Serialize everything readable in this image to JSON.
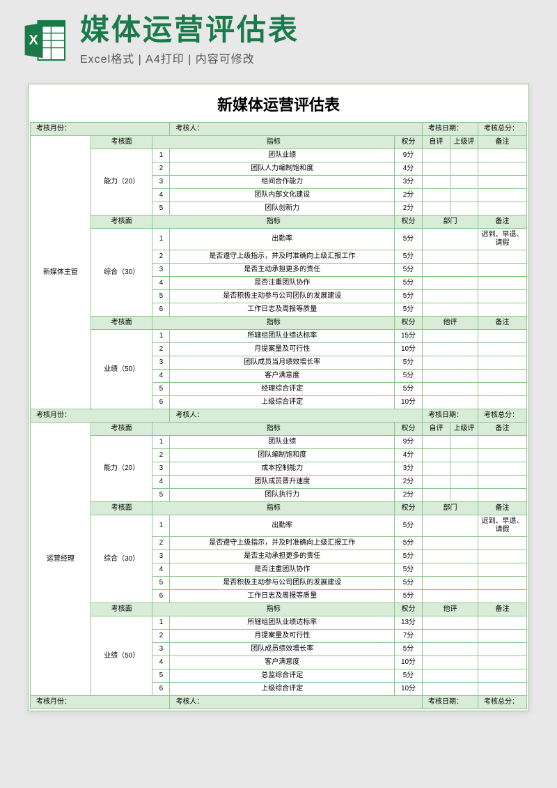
{
  "header": {
    "title": "媒体运营评估表",
    "subtitle": "Excel格式 | A4打印 | 内容可修改",
    "icon_color": "#1a7a4a"
  },
  "form_title": "新媒体运营评估表",
  "info_labels": {
    "month": "考核月份：",
    "person": "考核人：",
    "date": "考核日期：",
    "total": "考核总分："
  },
  "col_headers": {
    "aspect": "考核面",
    "indicator": "指标",
    "weight": "权分",
    "self": "自评",
    "superior": "上级评",
    "dept": "部门",
    "other": "他评",
    "remark": "备注"
  },
  "sections": [
    {
      "role": "新媒体主管",
      "blocks": [
        {
          "category": "能力（20）",
          "eval_type": "self_sup",
          "rows": [
            {
              "n": "1",
              "ind": "团队业绩",
              "w": "9分"
            },
            {
              "n": "2",
              "ind": "团队人力编制饱和度",
              "w": "4分"
            },
            {
              "n": "3",
              "ind": "组间合作能力",
              "w": "3分"
            },
            {
              "n": "4",
              "ind": "团队内部文化建设",
              "w": "2分"
            },
            {
              "n": "5",
              "ind": "团队创新力",
              "w": "2分"
            }
          ]
        },
        {
          "category": "综合（30）",
          "eval_type": "dept",
          "remark_hint": "迟到、早退、请假",
          "rows": [
            {
              "n": "1",
              "ind": "出勤率",
              "w": "5分"
            },
            {
              "n": "2",
              "ind": "是否遵守上级指示，并及时准确向上级汇报工作",
              "w": "5分"
            },
            {
              "n": "3",
              "ind": "是否主动承担更多的责任",
              "w": "5分"
            },
            {
              "n": "4",
              "ind": "是否注重团队协作",
              "w": "5分"
            },
            {
              "n": "5",
              "ind": "是否积极主动参与公司团队的发展建设",
              "w": "5分"
            },
            {
              "n": "6",
              "ind": "工作日志及周报等质量",
              "w": "5分"
            }
          ]
        },
        {
          "category": "业绩（50）",
          "eval_type": "other",
          "rows": [
            {
              "n": "1",
              "ind": "所辖组团队业绩达标率",
              "w": "15分"
            },
            {
              "n": "2",
              "ind": "月提案量及可行性",
              "w": "10分"
            },
            {
              "n": "3",
              "ind": "团队成员当月绩效增长率",
              "w": "5分"
            },
            {
              "n": "4",
              "ind": "客户满意度",
              "w": "5分"
            },
            {
              "n": "5",
              "ind": "经理综合评定",
              "w": "5分"
            },
            {
              "n": "6",
              "ind": "上级综合评定",
              "w": "10分"
            }
          ]
        }
      ]
    },
    {
      "role": "运营经理",
      "blocks": [
        {
          "category": "能力（20）",
          "eval_type": "self_sup",
          "rows": [
            {
              "n": "1",
              "ind": "团队业绩",
              "w": "9分"
            },
            {
              "n": "2",
              "ind": "团队编制饱和度",
              "w": "4分"
            },
            {
              "n": "3",
              "ind": "成本控制能力",
              "w": "3分"
            },
            {
              "n": "4",
              "ind": "团队成员晋升速度",
              "w": "2分"
            },
            {
              "n": "5",
              "ind": "团队执行力",
              "w": "2分"
            }
          ]
        },
        {
          "category": "综合（30）",
          "eval_type": "dept",
          "remark_hint": "迟到、早退、请假",
          "rows": [
            {
              "n": "1",
              "ind": "出勤率",
              "w": "5分"
            },
            {
              "n": "2",
              "ind": "是否遵守上级指示，并及时准确向上级汇报工作",
              "w": "5分"
            },
            {
              "n": "3",
              "ind": "是否主动承担更多的责任",
              "w": "5分"
            },
            {
              "n": "4",
              "ind": "是否注重团队协作",
              "w": "5分"
            },
            {
              "n": "5",
              "ind": "是否积极主动参与公司团队的发展建设",
              "w": "5分"
            },
            {
              "n": "6",
              "ind": "工作日志及周报等质量",
              "w": "5分"
            }
          ]
        },
        {
          "category": "业绩（50）",
          "eval_type": "other",
          "rows": [
            {
              "n": "1",
              "ind": "所辖组团队业绩达标率",
              "w": "13分"
            },
            {
              "n": "2",
              "ind": "月提案量及可行性",
              "w": "7分"
            },
            {
              "n": "3",
              "ind": "团队成员绩效增长率",
              "w": "5分"
            },
            {
              "n": "4",
              "ind": "客户满意度",
              "w": "10分"
            },
            {
              "n": "5",
              "ind": "总监综合评定",
              "w": "5分"
            },
            {
              "n": "6",
              "ind": "上级综合评定",
              "w": "10分"
            }
          ]
        }
      ]
    }
  ],
  "colors": {
    "border": "#8bc78b",
    "header_bg": "#d8ecd8",
    "brand": "#1a7a4a",
    "page_bg": "#e8e8e8"
  }
}
